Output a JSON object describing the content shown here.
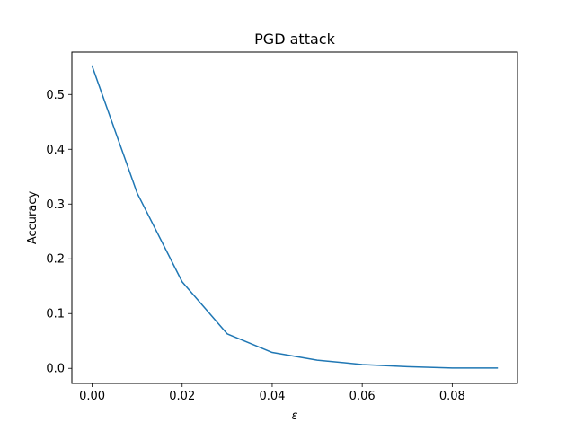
{
  "chart_data": {
    "type": "line",
    "title": "PGD attack",
    "xlabel": "ε",
    "ylabel": "Accuracy",
    "xlim": [
      -0.0045,
      0.0945
    ],
    "ylim": [
      -0.0275,
      0.5775
    ],
    "xticks": [
      0.0,
      0.02,
      0.04,
      0.06,
      0.08
    ],
    "xtick_labels": [
      "0.00",
      "0.02",
      "0.04",
      "0.06",
      "0.08"
    ],
    "yticks": [
      0.0,
      0.1,
      0.2,
      0.3,
      0.4,
      0.5
    ],
    "ytick_labels": [
      "0.0",
      "0.1",
      "0.2",
      "0.3",
      "0.4",
      "0.5"
    ],
    "grid": false,
    "series": [
      {
        "color": "#1f77b4",
        "x": [
          0.0,
          0.01,
          0.02,
          0.03,
          0.04,
          0.05,
          0.06,
          0.07,
          0.08,
          0.09
        ],
        "y": [
          0.552,
          0.32,
          0.158,
          0.063,
          0.029,
          0.015,
          0.007,
          0.003,
          0.0005,
          0.0005
        ]
      }
    ]
  }
}
